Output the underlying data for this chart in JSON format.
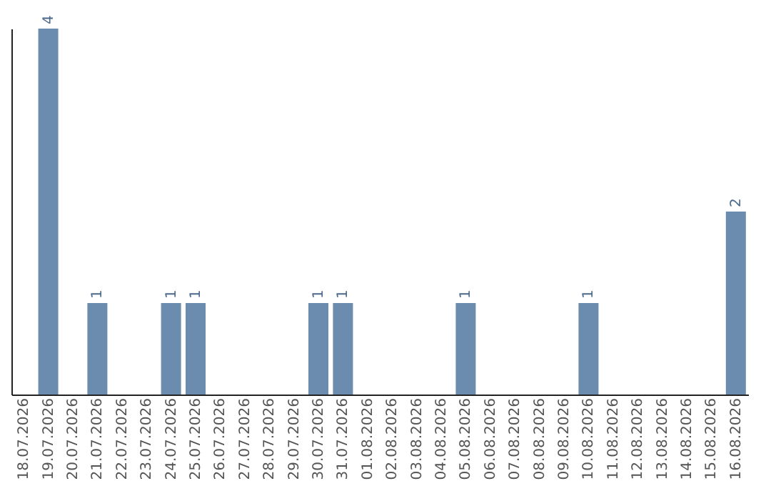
{
  "chart_data": {
    "type": "bar",
    "categories": [
      "18.07.2026",
      "19.07.2026",
      "20.07.2026",
      "21.07.2026",
      "22.07.2026",
      "23.07.2026",
      "24.07.2026",
      "25.07.2026",
      "26.07.2026",
      "27.07.2026",
      "28.07.2026",
      "29.07.2026",
      "30.07.2026",
      "31.07.2026",
      "01.08.2026",
      "02.08.2026",
      "03.08.2026",
      "04.08.2026",
      "05.08.2026",
      "06.08.2026",
      "07.08.2026",
      "08.08.2026",
      "09.08.2026",
      "10.08.2026",
      "11.08.2026",
      "12.08.2026",
      "13.08.2026",
      "14.08.2026",
      "15.08.2026",
      "16.08.2026"
    ],
    "values": [
      0,
      4,
      0,
      1,
      0,
      0,
      1,
      1,
      0,
      0,
      0,
      0,
      1,
      1,
      0,
      0,
      0,
      0,
      1,
      0,
      0,
      0,
      0,
      1,
      0,
      0,
      0,
      0,
      0,
      2
    ],
    "value_labels": [
      null,
      "4",
      null,
      "1",
      null,
      null,
      "1",
      "1",
      null,
      null,
      null,
      null,
      "1",
      "1",
      null,
      null,
      null,
      null,
      "1",
      null,
      null,
      null,
      null,
      "1",
      null,
      null,
      null,
      null,
      null,
      "2"
    ],
    "color": "#6b8cae",
    "grid": false,
    "tick_labels": "x"
  }
}
